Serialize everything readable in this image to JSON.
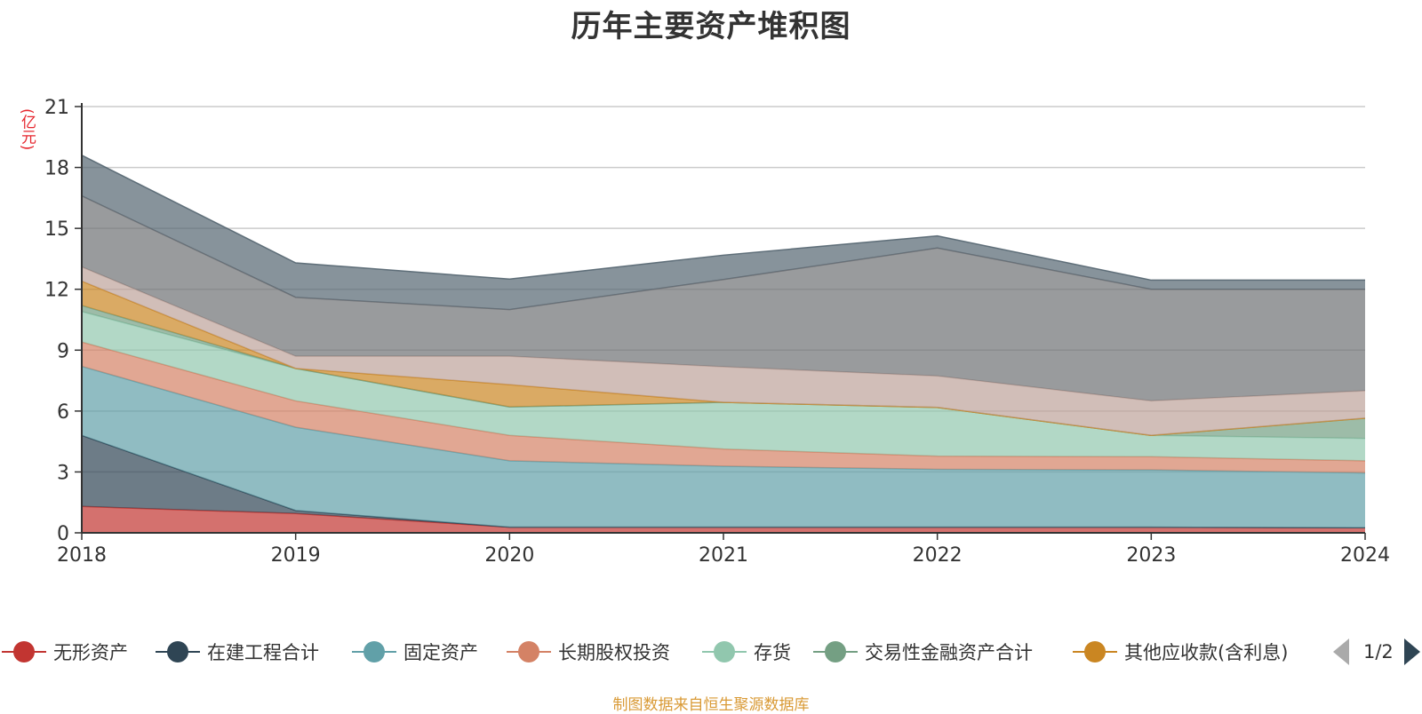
{
  "chart_data": {
    "type": "area",
    "stacked": true,
    "title": "历年主要资产堆积图",
    "unit_label": "(亿元)",
    "x": [
      "2018",
      "2019",
      "2020",
      "2021",
      "2022",
      "2023",
      "2024"
    ],
    "yticks": [
      "0",
      "3",
      "6",
      "9",
      "12",
      "15",
      "18",
      "21"
    ],
    "ylim": [
      0,
      21
    ],
    "grid": true,
    "legend_position": "bottom",
    "series": [
      {
        "name": "无形资产",
        "color": "#c23531",
        "values": [
          1.3,
          0.95,
          0.28,
          0.28,
          0.28,
          0.28,
          0.25
        ]
      },
      {
        "name": "在建工程合计",
        "color": "#2f4554",
        "values": [
          3.5,
          0.15,
          0.0,
          0.0,
          0.0,
          0.0,
          0.0
        ]
      },
      {
        "name": "固定资产",
        "color": "#61a0a8",
        "values": [
          3.4,
          4.1,
          3.27,
          3.0,
          2.85,
          2.82,
          2.7
        ]
      },
      {
        "name": "长期股权投资",
        "color": "#d48265",
        "values": [
          1.2,
          1.3,
          1.25,
          0.85,
          0.65,
          0.65,
          0.6
        ]
      },
      {
        "name": "存货",
        "color": "#91c7ae",
        "values": [
          1.5,
          1.6,
          1.4,
          2.3,
          2.4,
          1.05,
          1.1
        ]
      },
      {
        "name": "交易性金融资产合计",
        "color": "#749f83",
        "values": [
          0.3,
          0.0,
          0.0,
          0.0,
          0.0,
          0.0,
          1.0
        ]
      },
      {
        "name": "其他应收款(含利息)",
        "color": "#ca8622",
        "values": [
          1.2,
          0.0,
          1.1,
          0.0,
          0.0,
          0.0,
          0.0
        ]
      },
      {
        "name": "",
        "color": "#bda29a",
        "values": [
          0.7,
          0.6,
          1.4,
          1.75,
          1.55,
          1.7,
          1.35
        ]
      },
      {
        "name": "",
        "color": "#6e7074",
        "values": [
          3.5,
          2.9,
          2.3,
          4.3,
          6.3,
          5.5,
          5.0
        ]
      },
      {
        "name": "",
        "color": "#546570",
        "values": [
          2.0,
          1.7,
          1.5,
          1.2,
          0.6,
          0.45,
          0.45
        ]
      }
    ]
  },
  "legend": {
    "items": [
      "无形资产",
      "在建工程合计",
      "固定资产",
      "长期股权投资",
      "存货",
      "交易性金融资产合计",
      "其他应收款(含利息)"
    ],
    "page_text": "1/2"
  },
  "source_note": "制图数据来自恒生聚源数据库"
}
